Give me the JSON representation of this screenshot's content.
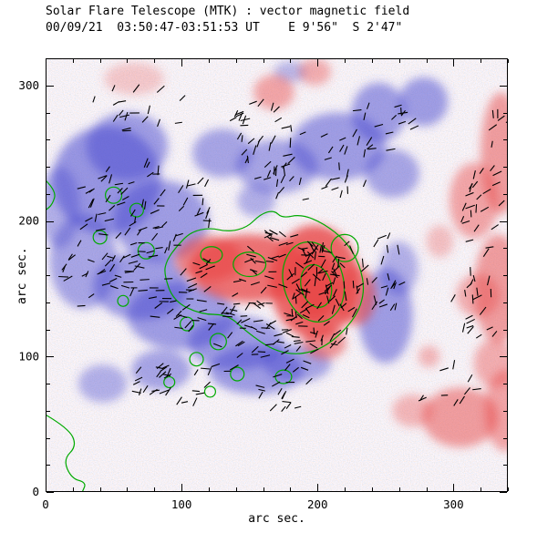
{
  "chart_data": {
    "type": "heatmap",
    "title": "Solar Flare Telescope (MTK) : vector magnetic field",
    "subtitle": "00/09/21  03:50:47-03:51:53 UT    E 9'56\"  S 2'47\"",
    "xlabel": "arc sec.",
    "ylabel": "arc sec.",
    "xlim": [
      0,
      340
    ],
    "ylim": [
      0,
      320
    ],
    "xticks": [
      0,
      100,
      200,
      300
    ],
    "yticks": [
      0,
      100,
      200,
      300
    ],
    "minor_tick_step": 20,
    "grid": false,
    "legend": null,
    "colors": {
      "positive_polarity": "#e84545",
      "negative_polarity": "#4848cf",
      "contour": "#00aa00",
      "vector": "#000000",
      "axis": "#000000",
      "background": "#ffffff"
    },
    "polarity_blobs": {
      "negative": [
        [
          45,
          230,
          40,
          40,
          0.55
        ],
        [
          85,
          200,
          35,
          30,
          0.5
        ],
        [
          28,
          170,
          25,
          35,
          0.45
        ],
        [
          70,
          152,
          35,
          25,
          0.5
        ],
        [
          100,
          130,
          40,
          25,
          0.5
        ],
        [
          140,
          110,
          35,
          20,
          0.5
        ],
        [
          155,
          90,
          35,
          18,
          0.5
        ],
        [
          85,
          90,
          22,
          15,
          0.45
        ],
        [
          42,
          80,
          18,
          14,
          0.4
        ],
        [
          250,
          130,
          20,
          35,
          0.5
        ],
        [
          260,
          165,
          14,
          20,
          0.4
        ],
        [
          170,
          240,
          30,
          20,
          0.45
        ],
        [
          215,
          255,
          35,
          25,
          0.5
        ],
        [
          255,
          235,
          20,
          18,
          0.45
        ],
        [
          245,
          280,
          20,
          22,
          0.5
        ],
        [
          278,
          288,
          18,
          18,
          0.5
        ],
        [
          155,
          215,
          14,
          12,
          0.4
        ],
        [
          180,
          310,
          12,
          8,
          0.35
        ],
        [
          130,
          250,
          22,
          18,
          0.45
        ],
        [
          60,
          255,
          30,
          25,
          0.5
        ],
        [
          185,
          95,
          25,
          14,
          0.45
        ],
        [
          10,
          210,
          15,
          30,
          0.4
        ]
      ],
      "positive": [
        [
          150,
          165,
          45,
          25,
          0.75
        ],
        [
          198,
          155,
          33,
          42,
          0.8
        ],
        [
          198,
          152,
          17,
          26,
          0.85
        ],
        [
          120,
          172,
          25,
          17,
          0.6
        ],
        [
          205,
          110,
          16,
          12,
          0.55
        ],
        [
          228,
          145,
          15,
          22,
          0.6
        ],
        [
          168,
          295,
          15,
          13,
          0.45
        ],
        [
          198,
          310,
          12,
          10,
          0.4
        ],
        [
          65,
          305,
          22,
          12,
          0.25
        ],
        [
          335,
          250,
          15,
          45,
          0.5
        ],
        [
          333,
          150,
          18,
          40,
          0.5
        ],
        [
          338,
          60,
          15,
          30,
          0.45
        ],
        [
          315,
          215,
          18,
          28,
          0.45
        ],
        [
          305,
          55,
          28,
          22,
          0.5
        ],
        [
          330,
          95,
          15,
          18,
          0.4
        ],
        [
          318,
          145,
          16,
          16,
          0.4
        ],
        [
          270,
          60,
          15,
          12,
          0.35
        ],
        [
          282,
          100,
          8,
          8,
          0.35
        ],
        [
          290,
          185,
          10,
          12,
          0.3
        ]
      ]
    },
    "contours": {
      "ellipses": [
        [
          197,
          155,
          22,
          30,
          -15
        ],
        [
          199,
          152,
          11,
          16,
          -15
        ],
        [
          150,
          168,
          12,
          9,
          0
        ],
        [
          220,
          180,
          10,
          10,
          0
        ],
        [
          122,
          175,
          8,
          6,
          0
        ],
        [
          50,
          219,
          6,
          6,
          0
        ],
        [
          67,
          208,
          5,
          5,
          0
        ],
        [
          40,
          188,
          5,
          5,
          0
        ],
        [
          74,
          178,
          6,
          6,
          0
        ],
        [
          57,
          141,
          4,
          4,
          0
        ],
        [
          104,
          124,
          5,
          5,
          0
        ],
        [
          127,
          111,
          6,
          6,
          0
        ],
        [
          111,
          98,
          5,
          5,
          0
        ],
        [
          141,
          87,
          5,
          5,
          0
        ],
        [
          91,
          81,
          4,
          4,
          0
        ],
        [
          121,
          74,
          4,
          4,
          0
        ],
        [
          175,
          85,
          6,
          5,
          0
        ]
      ],
      "paths": [
        {
          "closed": true,
          "points": [
            [
              87,
              161
            ],
            [
              94,
              141
            ],
            [
              114,
              131
            ],
            [
              134,
              131
            ],
            [
              148,
              118
            ],
            [
              168,
              104
            ],
            [
              188,
              101
            ],
            [
              208,
              108
            ],
            [
              228,
              128
            ],
            [
              235,
              148
            ],
            [
              231,
              168
            ],
            [
              221,
              185
            ],
            [
              205,
              198
            ],
            [
              188,
              205
            ],
            [
              174,
              202
            ],
            [
              168,
              208
            ],
            [
              158,
              205
            ],
            [
              148,
              195
            ],
            [
              134,
              192
            ],
            [
              121,
              195
            ],
            [
              107,
              192
            ],
            [
              97,
              182
            ],
            [
              89,
              171
            ]
          ]
        },
        {
          "closed": false,
          "points": [
            [
              0,
              57
            ],
            [
              17,
              47
            ],
            [
              23,
              34
            ],
            [
              13,
              24
            ],
            [
              19,
              10
            ],
            [
              30,
              7
            ],
            [
              27,
              0
            ]
          ]
        },
        {
          "closed": false,
          "points": [
            [
              0,
              230
            ],
            [
              8,
              222
            ],
            [
              5,
              212
            ],
            [
              0,
              208
            ]
          ]
        }
      ]
    },
    "vector_clusters": [
      [
        74,
        212,
        55,
        40,
        70,
        40
      ],
      [
        47,
        161,
        35,
        30,
        40,
        25
      ],
      [
        121,
        141,
        45,
        30,
        55,
        15
      ],
      [
        181,
        161,
        40,
        35,
        60,
        -10
      ],
      [
        208,
        148,
        30,
        40,
        70,
        75
      ],
      [
        168,
        108,
        45,
        22,
        45,
        10
      ],
      [
        195,
        242,
        50,
        28,
        45,
        55
      ],
      [
        154,
        269,
        25,
        20,
        20,
        45
      ],
      [
        248,
        161,
        18,
        30,
        20,
        60
      ],
      [
        322,
        208,
        18,
        35,
        22,
        50
      ],
      [
        319,
        141,
        20,
        30,
        20,
        60
      ],
      [
        101,
        81,
        40,
        18,
        30,
        30
      ],
      [
        174,
        74,
        25,
        14,
        15,
        25
      ],
      [
        67,
        282,
        40,
        18,
        18,
        45
      ],
      [
        248,
        269,
        25,
        20,
        18,
        50
      ],
      [
        295,
        81,
        25,
        18,
        10,
        45
      ],
      [
        339,
        256,
        12,
        40,
        12,
        60
      ]
    ],
    "noise_seed": 11
  }
}
